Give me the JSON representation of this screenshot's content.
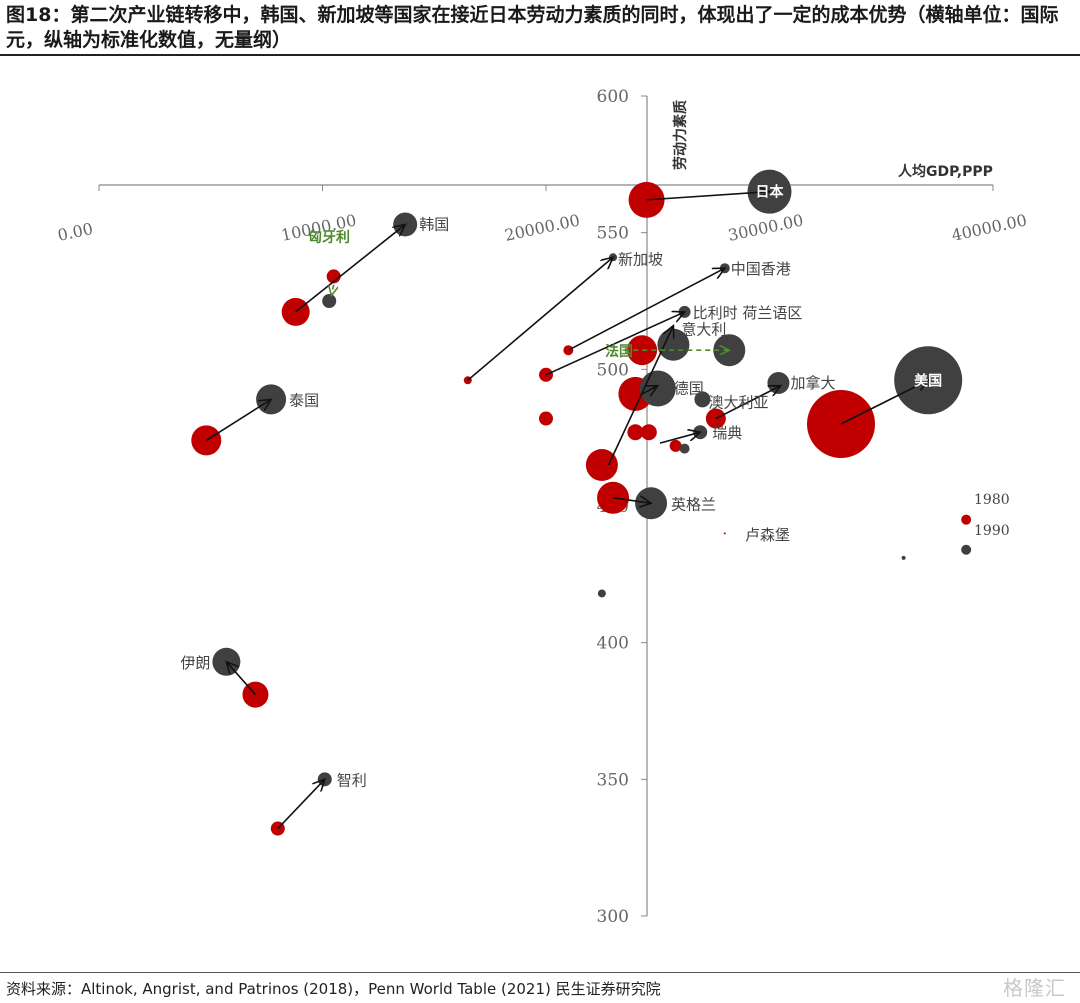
{
  "title": "图18：第二次产业链转移中，韩国、新加坡等国家在接近日本劳动力素质的同时，体现出了一定的成本优势（横轴单位：国际元，纵轴为标准化数值，无量纲）",
  "source": "资料来源：Altinok, Angrist, and Patrinos (2018)，Penn World Table (2021) 民生证券研究院",
  "watermark": "格隆汇",
  "colors": {
    "y1980": "#c00000",
    "y1990": "#404040",
    "arrow": "#111111",
    "green": "#4e8a2e"
  },
  "chart_data": {
    "type": "scatter",
    "title": "图18：第二次产业链转移中，韩国、新加坡等国家在接近日本劳动力素质的同时，体现出了一定的成本优势（横轴单位：国际元，纵轴为标准化数值，无量纲）",
    "xlabel": "人均GDP,PPP",
    "ylabel": "劳动力素质",
    "xlim": [
      0,
      40000
    ],
    "ylim": [
      300,
      600
    ],
    "x_ticks": [
      "0.00",
      "10000.00",
      "20000.00",
      "30000.00",
      "40000.00"
    ],
    "y_ticks": [
      "300",
      "350",
      "400",
      "450",
      "500",
      "550",
      "600"
    ],
    "legend": {
      "position": "right",
      "entries": [
        "1980",
        "1990"
      ]
    },
    "series": [
      {
        "name": "1980",
        "color": "#c00000",
        "points": [
          {
            "x": 24500,
            "y": 562,
            "size": 18,
            "label": "",
            "mark": "japan-1980"
          },
          {
            "x": 8800,
            "y": 521,
            "size": 14,
            "label": "",
            "mark": "korea-1980"
          },
          {
            "x": 10500,
            "y": 534,
            "size": 7,
            "label": "",
            "mark": "hungary-1980"
          },
          {
            "x": 16500,
            "y": 496,
            "size": 4,
            "label": "",
            "mark": "singapore-1980"
          },
          {
            "x": 21000,
            "y": 507,
            "size": 5,
            "label": "",
            "mark": "hongkong-1980"
          },
          {
            "x": 20000,
            "y": 498,
            "size": 7,
            "label": "",
            "mark": "belgium-1980"
          },
          {
            "x": 24300,
            "y": 507,
            "size": 15,
            "label": "",
            "mark": "italy-1980"
          },
          {
            "x": 24000,
            "y": 491,
            "size": 17,
            "label": "",
            "mark": "germany-1980"
          },
          {
            "x": 20000,
            "y": 482,
            "size": 7,
            "label": "",
            "mark": "uk-1980-small"
          },
          {
            "x": 22500,
            "y": 465,
            "size": 16,
            "label": "",
            "mark": "uk-1980"
          },
          {
            "x": 23000,
            "y": 453,
            "size": 16,
            "label": "",
            "mark": "uk-1980-b"
          },
          {
            "x": 24000,
            "y": 477,
            "size": 8,
            "label": "",
            "mark": "netherlands-1980"
          },
          {
            "x": 24600,
            "y": 477,
            "size": 8,
            "label": "",
            "mark": "netherlands-1980-b"
          },
          {
            "x": 25800,
            "y": 472,
            "size": 6,
            "label": "",
            "mark": "sweden-1980"
          },
          {
            "x": 27600,
            "y": 482,
            "size": 10,
            "label": "",
            "mark": "australia-1980"
          },
          {
            "x": 33200,
            "y": 480,
            "size": 34,
            "label": "",
            "mark": "usa-1980"
          },
          {
            "x": 4800,
            "y": 474,
            "size": 15,
            "label": "",
            "mark": "thailand-1980"
          },
          {
            "x": 7000,
            "y": 381,
            "size": 13,
            "label": "",
            "mark": "iran-1980"
          },
          {
            "x": 8000,
            "y": 332,
            "size": 7,
            "label": "",
            "mark": "chile-1980"
          },
          {
            "x": 28000,
            "y": 440,
            "size": 1,
            "label": "",
            "mark": "luxembourg-1980"
          },
          {
            "x": 38800,
            "y": 445,
            "size": 5,
            "label": "",
            "mark": "legend-1980"
          }
        ]
      },
      {
        "name": "1990",
        "color": "#404040",
        "points": [
          {
            "x": 30000,
            "y": 565,
            "size": 22,
            "label": "日本",
            "mark": "japan-1990"
          },
          {
            "x": 13700,
            "y": 553,
            "size": 12,
            "label": "韩国",
            "mark": "korea-1990"
          },
          {
            "x": 10300,
            "y": 525,
            "size": 7,
            "label": "",
            "mark": "hungary-1990"
          },
          {
            "x": 23000,
            "y": 541,
            "size": 4,
            "label": "新加坡",
            "mark": "singapore-1990"
          },
          {
            "x": 28000,
            "y": 537,
            "size": 5,
            "label": "中国香港",
            "mark": "hongkong-1990"
          },
          {
            "x": 26200,
            "y": 521,
            "size": 6,
            "label": "比利时 荷兰语区",
            "mark": "belgium-1990"
          },
          {
            "x": 25700,
            "y": 509,
            "size": 16,
            "label": "意大利",
            "mark": "italy-1990"
          },
          {
            "x": 28200,
            "y": 507,
            "size": 16,
            "label": "",
            "mark": "france-1990"
          },
          {
            "x": 25000,
            "y": 493,
            "size": 18,
            "label": "德国",
            "mark": "germany-1990"
          },
          {
            "x": 30400,
            "y": 495,
            "size": 11,
            "label": "加拿大",
            "mark": "canada-1990"
          },
          {
            "x": 27000,
            "y": 489,
            "size": 8,
            "label": "澳大利亚",
            "mark": "australia-1990"
          },
          {
            "x": 26900,
            "y": 477,
            "size": 7,
            "label": "瑞典",
            "mark": "sweden-1990"
          },
          {
            "x": 26200,
            "y": 471,
            "size": 5,
            "label": "",
            "mark": "sweden-1990-b"
          },
          {
            "x": 24700,
            "y": 451,
            "size": 16,
            "label": "英格兰",
            "mark": "uk-1990"
          },
          {
            "x": 37100,
            "y": 496,
            "size": 34,
            "label": "美国",
            "mark": "usa-1990"
          },
          {
            "x": 7700,
            "y": 489,
            "size": 15,
            "label": "泰国",
            "mark": "thailand-1990"
          },
          {
            "x": 5700,
            "y": 393,
            "size": 14,
            "label": "伊朗",
            "mark": "iran-1990"
          },
          {
            "x": 10100,
            "y": 350,
            "size": 7,
            "label": "智利",
            "mark": "chile-1990"
          },
          {
            "x": 22500,
            "y": 418,
            "size": 4,
            "label": "",
            "mark": "other-1990"
          },
          {
            "x": 36000,
            "y": 431,
            "size": 2,
            "label": "",
            "mark": "other-1990-b"
          },
          {
            "x": 38800,
            "y": 434,
            "size": 5,
            "label": "",
            "mark": "legend-1990"
          }
        ]
      }
    ],
    "annotations": [
      {
        "text": "匈牙利",
        "color": "#4e8a2e"
      },
      {
        "text": "法国",
        "color": "#4e8a2e"
      },
      {
        "text": "卢森堡",
        "color": "#404040"
      }
    ],
    "arrows": [
      {
        "from": [
          24500,
          562
        ],
        "to": [
          30000,
          565
        ],
        "style": "solid"
      },
      {
        "from": [
          8800,
          521
        ],
        "to": [
          13700,
          553
        ],
        "style": "solid"
      },
      {
        "from": [
          16500,
          496
        ],
        "to": [
          23000,
          541
        ],
        "style": "solid"
      },
      {
        "from": [
          21000,
          507
        ],
        "to": [
          28000,
          537
        ],
        "style": "solid"
      },
      {
        "from": [
          20000,
          498
        ],
        "to": [
          26200,
          521
        ],
        "style": "solid"
      },
      {
        "from": [
          22800,
          465
        ],
        "to": [
          25700,
          516
        ],
        "style": "solid"
      },
      {
        "from": [
          24300,
          491
        ],
        "to": [
          25000,
          494
        ],
        "style": "solid"
      },
      {
        "from": [
          27600,
          482
        ],
        "to": [
          30500,
          494
        ],
        "style": "solid"
      },
      {
        "from": [
          25100,
          473
        ],
        "to": [
          26900,
          477
        ],
        "style": "solid"
      },
      {
        "from": [
          23000,
          453
        ],
        "to": [
          24700,
          451
        ],
        "style": "solid"
      },
      {
        "from": [
          33200,
          480
        ],
        "to": [
          37100,
          496
        ],
        "style": "solid"
      },
      {
        "from": [
          4800,
          474
        ],
        "to": [
          7700,
          489
        ],
        "style": "solid"
      },
      {
        "from": [
          7000,
          381
        ],
        "to": [
          5700,
          393
        ],
        "style": "solid"
      },
      {
        "from": [
          8000,
          332
        ],
        "to": [
          10100,
          350
        ],
        "style": "solid"
      },
      {
        "from": [
          10500,
          531
        ],
        "to": [
          10400,
          527
        ],
        "style": "dashed-green"
      },
      {
        "from": [
          23500,
          507
        ],
        "to": [
          28200,
          507
        ],
        "style": "dashed-green"
      }
    ],
    "grid": false
  }
}
